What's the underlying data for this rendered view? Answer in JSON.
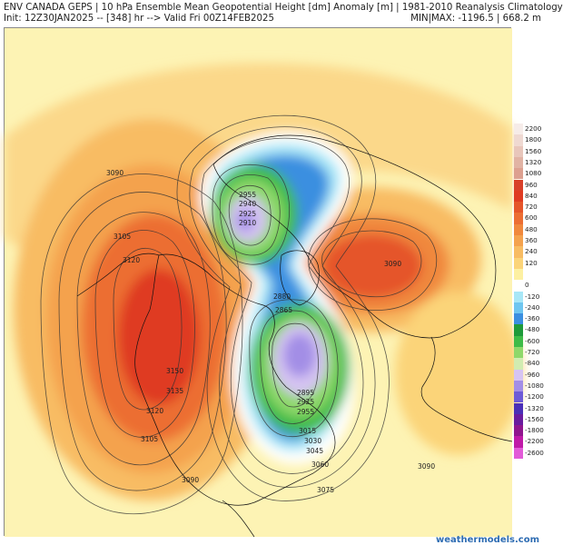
{
  "header": {
    "line1_left": "ENV CANADA GEPS | 10 hPa Ensemble Mean Geopotential Height [dm] Anomaly [m] | 1981-2010 Reanalysis Climatology",
    "line2_left": "Init: 12Z30JAN2025 -- [348] hr --> Valid Fri 00Z14FEB2025",
    "line2_right": "MIN|MAX: -1196.5 | 668.2 m"
  },
  "legend": {
    "levels": [
      {
        "label": "2200",
        "color": "#f6ece9"
      },
      {
        "label": "1800",
        "color": "#efd9d2"
      },
      {
        "label": "1560",
        "color": "#e8c6bb"
      },
      {
        "label": "1320",
        "color": "#e1b3a4"
      },
      {
        "label": "1080",
        "color": "#dda090"
      },
      {
        "label": "960",
        "color": "#d8402a"
      },
      {
        "label": "840",
        "color": "#df3b22"
      },
      {
        "label": "720",
        "color": "#e5552a"
      },
      {
        "label": "600",
        "color": "#ec6e33"
      },
      {
        "label": "480",
        "color": "#f0883d"
      },
      {
        "label": "360",
        "color": "#f4a24e"
      },
      {
        "label": "240",
        "color": "#f8bc63"
      },
      {
        "label": "120",
        "color": "#fbd479"
      },
      {
        "label": "",
        "color": "#fdf0a2"
      },
      {
        "label": "0",
        "color": "#ffffff"
      },
      {
        "label": "-120",
        "color": "#a8e7f7"
      },
      {
        "label": "-240",
        "color": "#6fc6f0"
      },
      {
        "label": "-360",
        "color": "#3b8fe0"
      },
      {
        "label": "-480",
        "color": "#1f9a3a"
      },
      {
        "label": "-600",
        "color": "#3fbb47"
      },
      {
        "label": "-720",
        "color": "#8fd86a"
      },
      {
        "label": "-840",
        "color": "#d1ecb1"
      },
      {
        "label": "-960",
        "color": "#d6c4f2"
      },
      {
        "label": "-1080",
        "color": "#a38ee6"
      },
      {
        "label": "-1200",
        "color": "#6e5bd6"
      },
      {
        "label": "-1320",
        "color": "#4a2fb6"
      },
      {
        "label": "-1560",
        "color": "#6a1c9e"
      },
      {
        "label": "-1800",
        "color": "#90168e"
      },
      {
        "label": "-2200",
        "color": "#c01aa8"
      },
      {
        "label": "-2600",
        "color": "#e25bd8"
      }
    ]
  },
  "contour_labels": [
    {
      "text": "3090"
    },
    {
      "text": "3105"
    },
    {
      "text": "3120"
    },
    {
      "text": "3150"
    },
    {
      "text": "3135"
    },
    {
      "text": "3120"
    },
    {
      "text": "3105"
    },
    {
      "text": "3090"
    },
    {
      "text": "2955"
    },
    {
      "text": "2940"
    },
    {
      "text": "2925"
    },
    {
      "text": "2910"
    },
    {
      "text": "2880"
    },
    {
      "text": "2865"
    },
    {
      "text": "2895"
    },
    {
      "text": "2925"
    },
    {
      "text": "2955"
    },
    {
      "text": "3015"
    },
    {
      "text": "3030"
    },
    {
      "text": "3045"
    },
    {
      "text": "3060"
    },
    {
      "text": "3075"
    },
    {
      "text": "3090"
    },
    {
      "text": "3090"
    }
  ],
  "footer": "weathermodels.com"
}
